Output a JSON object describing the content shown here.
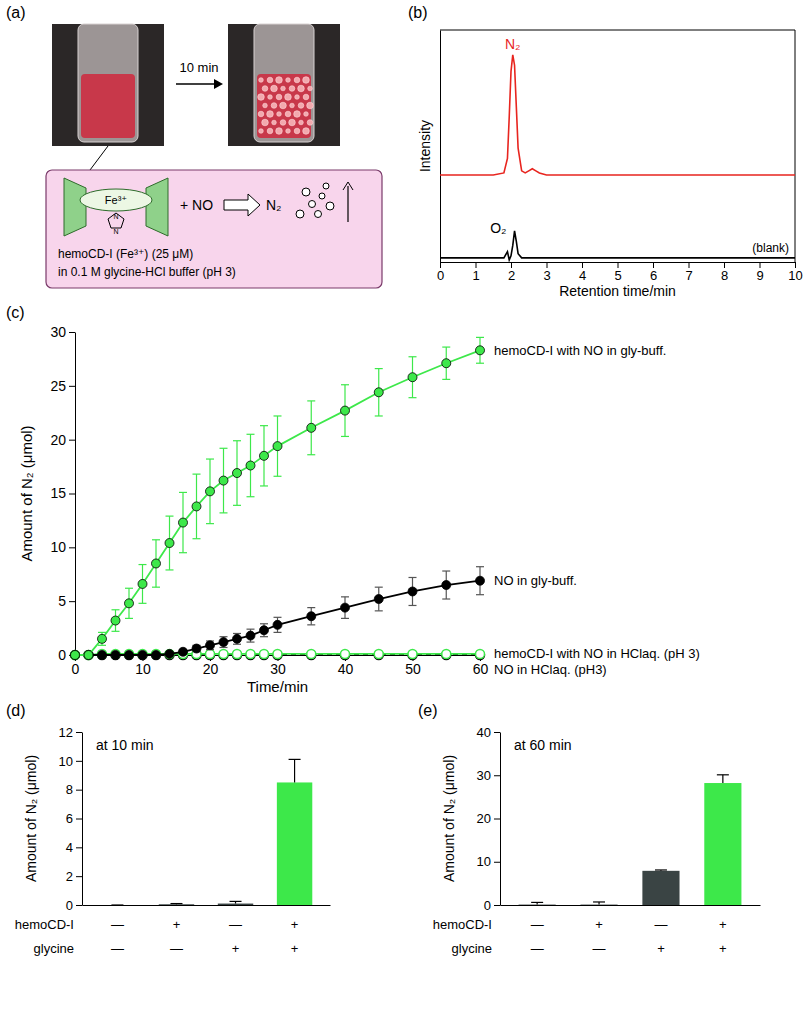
{
  "diagram": {
    "panel_label": "(a)",
    "arrow_label": "10 min",
    "metal_label": "Fe³⁺",
    "imidazole_atoms": [
      "N",
      "N"
    ],
    "reagent": "+ NO",
    "product": "N₂",
    "caption": [
      "hemoCD-I (Fe³⁺) (25 μM)",
      "in 0.1 M glycine-HCl buffer (pH 3)"
    ]
  },
  "chart_data": [
    {
      "type": "line",
      "panel_label": "(b)",
      "x_label": "Retention time/min",
      "y_label": "Intensity",
      "tick_labels": "x",
      "x": [
        0,
        1,
        1.5,
        1.8,
        1.9,
        1.95,
        2.0,
        2.05,
        2.1,
        2.15,
        2.2,
        2.3,
        2.4,
        2.5,
        2.6,
        2.7,
        2.8,
        3,
        4,
        5,
        6,
        7,
        8,
        9,
        10
      ],
      "xlim": [
        0,
        10
      ],
      "xticks": [
        0,
        1,
        2,
        3,
        4,
        5,
        6,
        7,
        8,
        9,
        10
      ],
      "ylim": [
        0,
        1.12
      ],
      "series": [
        {
          "color": "#e8251f",
          "peak_label": "N₂",
          "values": [
            0.42,
            0.42,
            0.42,
            0.43,
            0.5,
            0.7,
            0.92,
            1.0,
            0.95,
            0.75,
            0.55,
            0.44,
            0.43,
            0.44,
            0.45,
            0.44,
            0.43,
            0.42,
            0.42,
            0.42,
            0.42,
            0.42,
            0.42,
            0.42,
            0.42
          ]
        },
        {
          "color": "#000000",
          "peak_label": "O₂",
          "end_label": "(blank)",
          "values": [
            0.02,
            0.02,
            0.02,
            0.02,
            0.05,
            0.01,
            0.03,
            0.08,
            0.15,
            0.1,
            0.04,
            0.02,
            0.02,
            0.02,
            0.02,
            0.02,
            0.02,
            0.02,
            0.02,
            0.02,
            0.02,
            0.02,
            0.02,
            0.02,
            0.02
          ]
        }
      ]
    },
    {
      "type": "line",
      "panel_label": "(c)",
      "x_label": "Time/min",
      "y_label": "Amount of N₂ (μmol)",
      "legend": "right",
      "x": [
        0,
        2,
        4,
        6,
        8,
        10,
        12,
        14,
        16,
        18,
        20,
        22,
        24,
        26,
        28,
        30,
        35,
        40,
        45,
        50,
        55,
        60
      ],
      "xlim": [
        0,
        60
      ],
      "xticks": [
        0,
        10,
        20,
        30,
        40,
        50,
        60
      ],
      "ylim": [
        0,
        30
      ],
      "yticks": [
        0,
        5,
        10,
        15,
        20,
        25,
        30
      ],
      "series": [
        {
          "name": "hemoCD-I with NO in gly-buff.",
          "color": "#3de84a",
          "marker": "circle",
          "line_style": "solid",
          "values": [
            0,
            0,
            1.5,
            3.2,
            4.8,
            6.6,
            8.5,
            10.4,
            12.3,
            13.8,
            15.2,
            16.2,
            16.9,
            17.6,
            18.5,
            19.4,
            21.1,
            22.7,
            24.4,
            25.8,
            27.1,
            28.3
          ],
          "errors": [
            0,
            0,
            0.6,
            1.0,
            1.4,
            1.8,
            2.2,
            2.5,
            2.8,
            3.0,
            3.0,
            3.0,
            3.0,
            2.9,
            2.8,
            2.8,
            2.5,
            2.4,
            2.2,
            1.9,
            1.5,
            1.2
          ]
        },
        {
          "name": "NO in gly-buff.",
          "color": "#000000",
          "marker": "circle",
          "line_style": "solid",
          "values": [
            0,
            0,
            0,
            0,
            0,
            0,
            0,
            0.1,
            0.3,
            0.6,
            0.9,
            1.2,
            1.5,
            1.8,
            2.3,
            2.8,
            3.6,
            4.4,
            5.2,
            5.9,
            6.5,
            6.9
          ],
          "errors": [
            0,
            0,
            0,
            0,
            0,
            0,
            0,
            0.1,
            0.2,
            0.3,
            0.4,
            0.5,
            0.5,
            0.6,
            0.6,
            0.7,
            0.8,
            1.0,
            1.1,
            1.3,
            1.3,
            1.3
          ]
        },
        {
          "name": "hemoCD-I with NO in HClaq. (pH 3)",
          "color": "#3de84a",
          "marker": "open-circle",
          "line_style": "solid",
          "values": [
            0,
            0,
            0.1,
            0.1,
            0.1,
            0.1,
            0.1,
            0.1,
            0.1,
            0.1,
            0.1,
            0.1,
            0.1,
            0.1,
            0.1,
            0.1,
            0.1,
            0.1,
            0.1,
            0.1,
            0.1,
            0.1
          ]
        },
        {
          "name": "NO in HClaq. (pH3)",
          "color": "#000000",
          "marker": "open-circle",
          "line_style": "dashed",
          "values": [
            0,
            0,
            0,
            0,
            0,
            0,
            0,
            0,
            0,
            0,
            0,
            0,
            0,
            0,
            0,
            0,
            0,
            0,
            0,
            0,
            0,
            0
          ]
        }
      ]
    },
    {
      "type": "bar",
      "panel_label": "(d)",
      "annotation": "at 10 min",
      "y_label": "Amount of N₂ (μmol)",
      "categories": [
        null,
        null,
        null,
        null
      ],
      "condition_rows": [
        {
          "name": "hemoCD-I",
          "marks": [
            "—",
            "+",
            "—",
            "+"
          ]
        },
        {
          "name": "glycine",
          "marks": [
            "—",
            "—",
            "+",
            "+"
          ]
        }
      ],
      "values": [
        0,
        0.05,
        0.1,
        8.5
      ],
      "errors": [
        0,
        0.05,
        0.15,
        1.6
      ],
      "colors": [
        "#3a4444",
        "#3a4444",
        "#3a4444",
        "#3de84a"
      ],
      "ylim": [
        0,
        12
      ],
      "yticks": [
        0,
        2,
        4,
        6,
        8,
        10,
        12
      ]
    },
    {
      "type": "bar",
      "panel_label": "(e)",
      "annotation": "at 60 min",
      "y_label": "Amount of N₂ (μmol)",
      "categories": [
        null,
        null,
        null,
        null
      ],
      "condition_rows": [
        {
          "name": "hemoCD-I",
          "marks": [
            "—",
            "+",
            "—",
            "+"
          ]
        },
        {
          "name": "glycine",
          "marks": [
            "—",
            "—",
            "+",
            "+"
          ]
        }
      ],
      "values": [
        0.1,
        0.1,
        7.9,
        28.2
      ],
      "errors": [
        0.5,
        0.6,
        0.2,
        1.9
      ],
      "colors": [
        "#3a4444",
        "#3a4444",
        "#3a4444",
        "#3de84a"
      ],
      "ylim": [
        0,
        40
      ],
      "yticks": [
        0,
        10,
        20,
        30,
        40
      ]
    }
  ]
}
